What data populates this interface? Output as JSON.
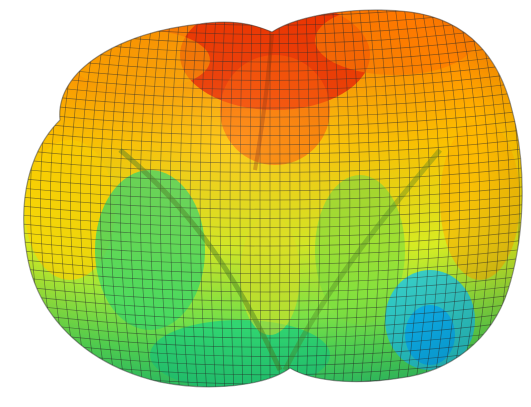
{
  "figure": {
    "subject": "3d-mesh-surface",
    "colormap": [
      "#1e3cc8",
      "#00aaff",
      "#22dd88",
      "#aaee22",
      "#ffdd00",
      "#ff9900",
      "#ee2200"
    ],
    "mesh_line_color": "#2a2a2a",
    "background": "#ffffff"
  }
}
